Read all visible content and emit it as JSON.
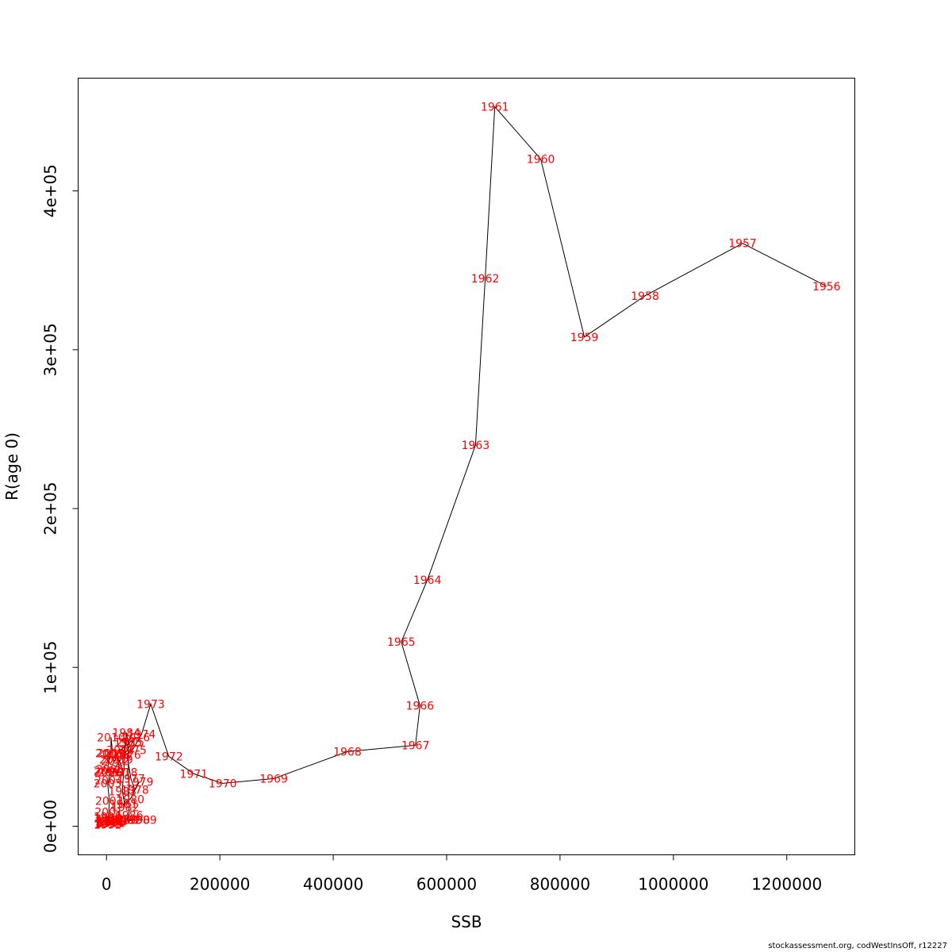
{
  "credit": "stockassessment.org, codWestInsOff, r12227",
  "chart_data": {
    "type": "line",
    "xlabel": "SSB",
    "ylabel": "R(age 0)",
    "xlim": [
      -50000,
      1320000
    ],
    "ylim": [
      -18000,
      471000
    ],
    "x_ticks": [
      0,
      200000,
      400000,
      600000,
      800000,
      1000000,
      1200000
    ],
    "x_tick_labels": [
      "0",
      "200000",
      "400000",
      "600000",
      "800000",
      "1000000",
      "1200000"
    ],
    "y_ticks": [
      0,
      100000,
      200000,
      300000,
      400000
    ],
    "y_tick_labels": [
      "0e+00",
      "1e+05",
      "2e+05",
      "3e+05",
      "4e+05"
    ],
    "grid": false,
    "line_color": "#000000",
    "label_color": "#ff0000",
    "points": [
      {
        "label": "1956",
        "ssb": 1270000,
        "r": 340000
      },
      {
        "label": "1957",
        "ssb": 1122000,
        "r": 367000
      },
      {
        "label": "1958",
        "ssb": 950000,
        "r": 334000
      },
      {
        "label": "1959",
        "ssb": 843000,
        "r": 308000
      },
      {
        "label": "1960",
        "ssb": 766000,
        "r": 420000
      },
      {
        "label": "1961",
        "ssb": 685000,
        "r": 453000
      },
      {
        "label": "1962",
        "ssb": 668000,
        "r": 345000
      },
      {
        "label": "1963",
        "ssb": 651000,
        "r": 240000
      },
      {
        "label": "1964",
        "ssb": 566000,
        "r": 155000
      },
      {
        "label": "1965",
        "ssb": 520000,
        "r": 116000
      },
      {
        "label": "1966",
        "ssb": 553000,
        "r": 76000
      },
      {
        "label": "1967",
        "ssb": 545000,
        "r": 51000
      },
      {
        "label": "1968",
        "ssb": 425000,
        "r": 47000
      },
      {
        "label": "1969",
        "ssb": 295000,
        "r": 30000
      },
      {
        "label": "1970",
        "ssb": 205000,
        "r": 27000
      },
      {
        "label": "1971",
        "ssb": 154000,
        "r": 33000
      },
      {
        "label": "1972",
        "ssb": 110000,
        "r": 44000
      },
      {
        "label": "1973",
        "ssb": 78000,
        "r": 77000
      },
      {
        "label": "1974",
        "ssb": 62000,
        "r": 58000
      },
      {
        "label": "1975",
        "ssb": 46000,
        "r": 48000
      },
      {
        "label": "1976",
        "ssb": 36000,
        "r": 45000
      },
      {
        "label": "1977",
        "ssb": 43000,
        "r": 30000
      },
      {
        "label": "1978",
        "ssb": 50000,
        "r": 23000
      },
      {
        "label": "1979",
        "ssb": 58000,
        "r": 28000
      },
      {
        "label": "1980",
        "ssb": 42000,
        "r": 17000
      },
      {
        "label": "1981",
        "ssb": 30000,
        "r": 14000
      },
      {
        "label": "1982",
        "ssb": 33000,
        "r": 12000
      },
      {
        "label": "1983",
        "ssb": 28000,
        "r": 22000
      },
      {
        "label": "1984",
        "ssb": 35000,
        "r": 59000
      },
      {
        "label": "1985",
        "ssb": 38000,
        "r": 53000
      },
      {
        "label": "1986",
        "ssb": 40000,
        "r": 7000
      },
      {
        "label": "1987",
        "ssb": 36000,
        "r": 4000
      },
      {
        "label": "1988",
        "ssb": 30000,
        "r": 4000
      },
      {
        "label": "1989",
        "ssb": 64000,
        "r": 4000
      },
      {
        "label": "1990",
        "ssb": 52000,
        "r": 4000
      },
      {
        "label": "1991",
        "ssb": 8000,
        "r": 2000
      },
      {
        "label": "1992",
        "ssb": 2000,
        "r": 1000
      },
      {
        "label": "1993",
        "ssb": 3000,
        "r": 1500
      },
      {
        "label": "1994",
        "ssb": 5000,
        "r": 2000
      },
      {
        "label": "1995",
        "ssb": 9000,
        "r": 2500
      },
      {
        "label": "1996",
        "ssb": 12000,
        "r": 3000
      },
      {
        "label": "1997",
        "ssb": 7000,
        "r": 4000
      },
      {
        "label": "1998",
        "ssb": 4000,
        "r": 3000
      },
      {
        "label": "1999",
        "ssb": 2000,
        "r": 6000
      },
      {
        "label": "2000",
        "ssb": 3000,
        "r": 5000
      },
      {
        "label": "2001",
        "ssb": 4000,
        "r": 9000
      },
      {
        "label": "2002",
        "ssb": 5000,
        "r": 16000
      },
      {
        "label": "2003",
        "ssb": 2000,
        "r": 27000
      },
      {
        "label": "2004",
        "ssb": 4000,
        "r": 29000
      },
      {
        "label": "2005",
        "ssb": 6000,
        "r": 36000
      },
      {
        "label": "2006",
        "ssb": 3000,
        "r": 34000
      },
      {
        "label": "2007",
        "ssb": 2000,
        "r": 35000
      },
      {
        "label": "2008",
        "ssb": 5000,
        "r": 46000
      },
      {
        "label": "2009",
        "ssb": 8000,
        "r": 46000
      },
      {
        "label": "2010",
        "ssb": 8000,
        "r": 56000
      },
      {
        "label": "2011",
        "ssb": 12000,
        "r": 42000
      },
      {
        "label": "2012",
        "ssb": 15000,
        "r": 41000
      },
      {
        "label": "2013",
        "ssb": 18000,
        "r": 45000
      },
      {
        "label": "2014",
        "ssb": 25000,
        "r": 48000
      },
      {
        "label": "2015",
        "ssb": 42000,
        "r": 53000
      },
      {
        "label": "2016",
        "ssb": 52000,
        "r": 56000
      },
      {
        "label": "2017",
        "ssb": 10000,
        "r": 34000
      },
      {
        "label": "2018",
        "ssb": 30000,
        "r": 34000
      },
      {
        "label": "2019",
        "ssb": 22000,
        "r": 42000
      }
    ]
  }
}
